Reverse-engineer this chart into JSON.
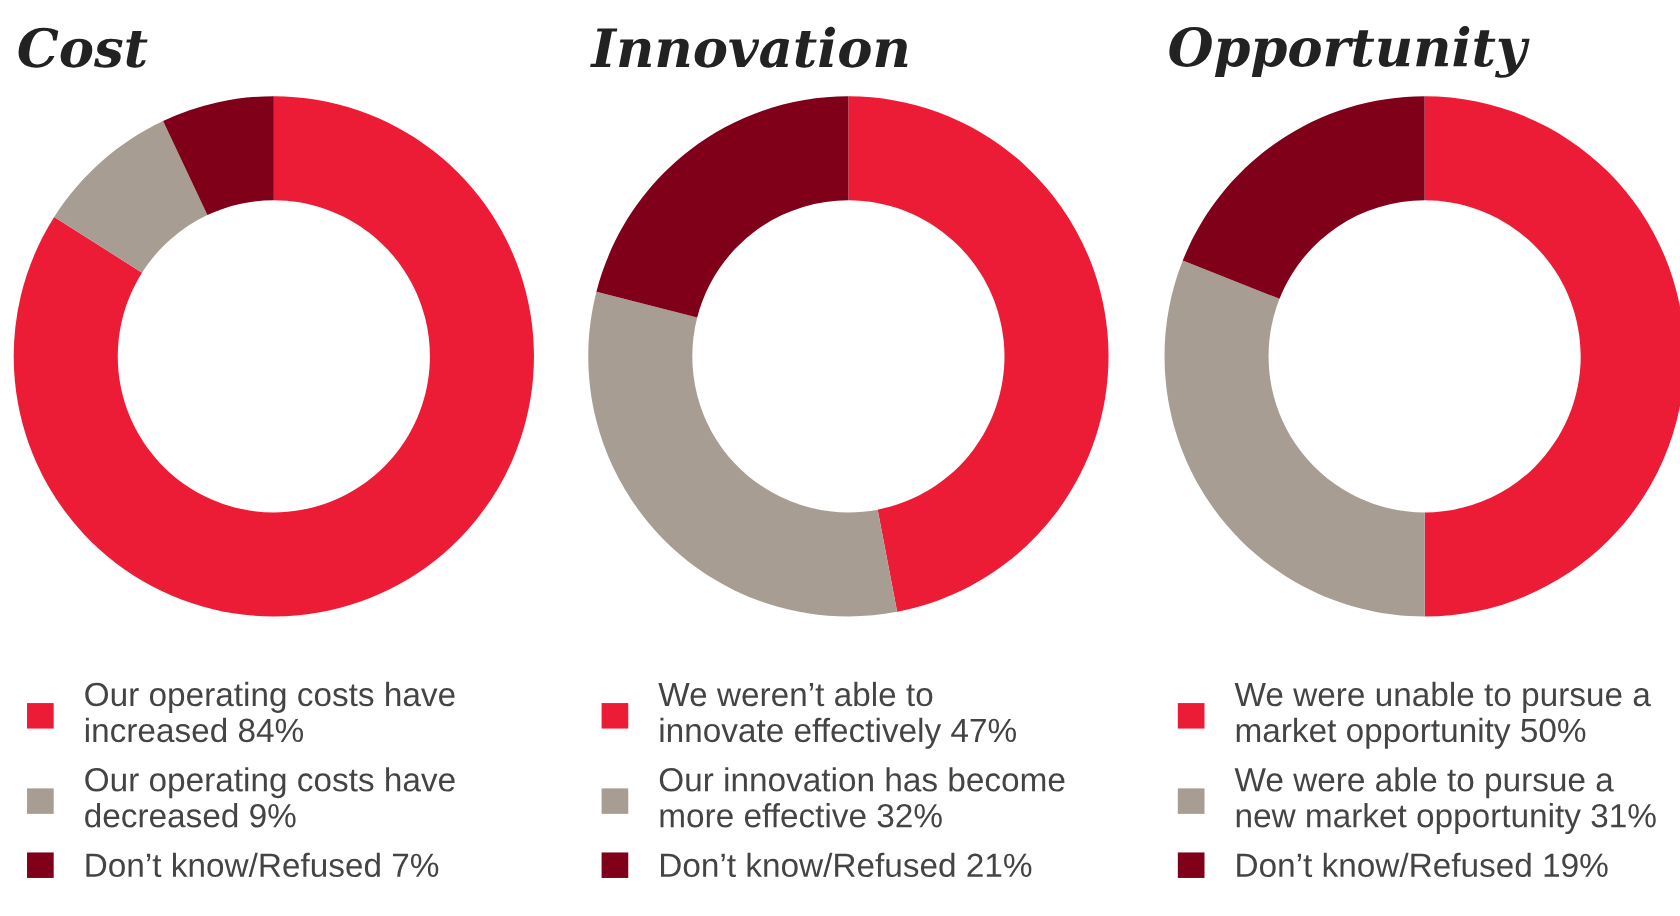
{
  "chart_data": [
    {
      "type": "donut",
      "title": "Cost",
      "categories": [
        "Our operating costs have increased",
        "Our operating costs have decreased",
        "Don’t know/Refused"
      ],
      "values": [
        84,
        9,
        7
      ],
      "value_labels": [
        "84%",
        "9%",
        "7%"
      ],
      "colors": [
        "#ed1c36",
        "#a89d93",
        "#80001a"
      ],
      "legend": "bottom"
    },
    {
      "type": "donut",
      "title": "Innovation",
      "categories": [
        "We weren’t able to innovate effectively",
        "Our innovation has become more effective",
        "Don’t know/Refused"
      ],
      "values": [
        47,
        32,
        21
      ],
      "value_labels": [
        "47%",
        "32%",
        "21%"
      ],
      "colors": [
        "#ed1c36",
        "#a89d93",
        "#80001a"
      ],
      "legend": "bottom"
    },
    {
      "type": "donut",
      "title": "Opportunity",
      "categories": [
        "We were unable to pursue a market opportunity",
        "We were able to pursue a new market opportunity",
        "Don’t know/Refused"
      ],
      "values": [
        50,
        31,
        19
      ],
      "value_labels": [
        "50%",
        "31%",
        "19%"
      ],
      "colors": [
        "#ed1c36",
        "#a89d93",
        "#80001a"
      ],
      "legend": "bottom"
    }
  ]
}
